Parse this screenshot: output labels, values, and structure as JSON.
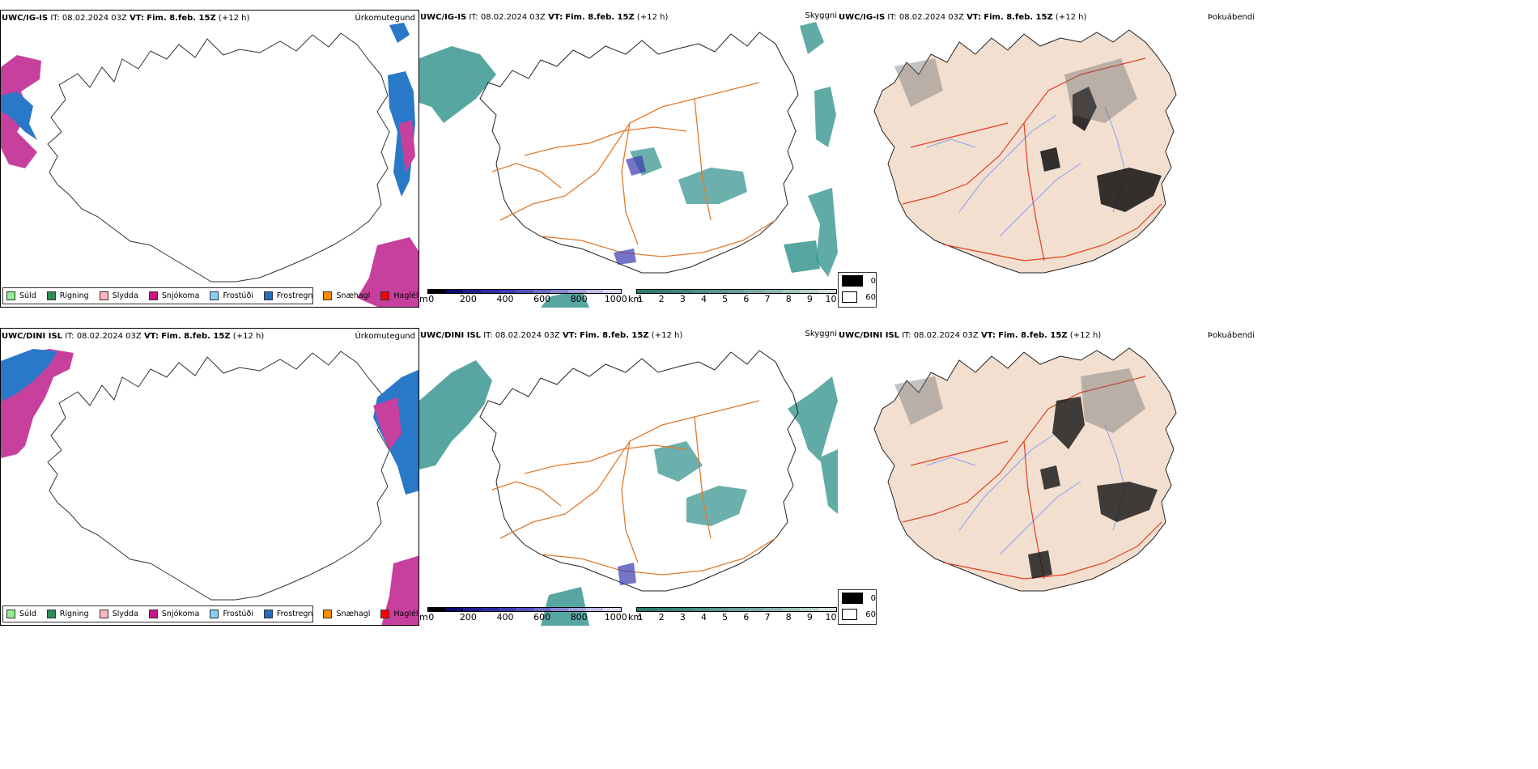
{
  "rows": [
    {
      "model": "UWC/IG-IS",
      "it_label": "IT:",
      "it_value": "08.02.2024 03Z",
      "vt_label": "VT:",
      "vt_value": "Fim. 8.feb. 15Z",
      "lead": "(+12 h)"
    },
    {
      "model": "UWC/DINI ISL",
      "it_label": "IT:",
      "it_value": "08.02.2024 03Z",
      "vt_label": "VT:",
      "vt_value": "Fim. 8.feb. 15Z",
      "lead": "(+12 h)"
    }
  ],
  "panels": {
    "precip_type": "Úrkomutegund",
    "cloud": "Skyggni",
    "fog": "Þokuábendi"
  },
  "precip_legend": [
    {
      "label": "Súld",
      "color": "#90ee90"
    },
    {
      "label": "Rigning",
      "color": "#2e8b57"
    },
    {
      "label": "Slydda",
      "color": "#ffb6c1"
    },
    {
      "label": "Snjókoma",
      "color": "#c71585"
    },
    {
      "label": "Frostúði",
      "color": "#87cefa"
    },
    {
      "label": "Frostregn",
      "color": "#1e6fc0"
    },
    {
      "label": "Snæhagl",
      "color": "#ff8c00"
    },
    {
      "label": "Haglél",
      "color": "#ff0000"
    }
  ],
  "ceiling_bar": {
    "unit": "m",
    "ticks": [
      "0",
      "200",
      "400",
      "600",
      "800",
      "1000"
    ],
    "colors": [
      "#000000",
      "#0a0a6e",
      "#1c1c8c",
      "#2b2ba0",
      "#3b3bb0",
      "#5050bd",
      "#6a6ac6",
      "#8585d0",
      "#a0a0da",
      "#bcbce5",
      "#d8d8f0"
    ]
  },
  "visibility_bar": {
    "unit": "km",
    "ticks": [
      "1",
      "2",
      "3",
      "4",
      "5",
      "6",
      "7",
      "8",
      "9",
      "10"
    ],
    "colors": [
      "#2a7a70",
      "#357f76",
      "#40867c",
      "#4c8e84",
      "#5a978d",
      "#6aa097",
      "#7aaaa2",
      "#8bb5ad",
      "#9fc2bb",
      "#b5d0ca",
      "#cfe0dc"
    ]
  },
  "fog_legend": [
    {
      "label": "0",
      "color": "#000000"
    },
    {
      "label": "60",
      "color": "#ffffff"
    }
  ],
  "colors": {
    "snow": "#c8409e",
    "freezing_rain": "#2a78c8",
    "roads": "#e07a2c",
    "roads_red": "#e04020",
    "land": "#f2dfd0",
    "cloud": "#3a9690",
    "rivers": "#8aa0f0"
  }
}
